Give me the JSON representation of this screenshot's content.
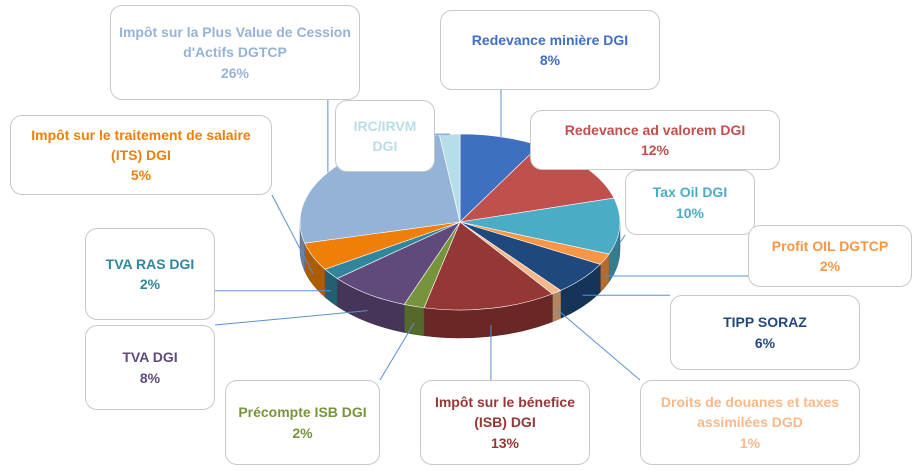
{
  "chart_data": {
    "type": "pie",
    "categories": [
      "Redevance minière DGI",
      "Redevance ad valorem DGI",
      "Tax Oil DGI",
      "Profit OIL DGTCP",
      "TIPP SORAZ",
      "Droits de douanes et taxes assimilées DGD",
      "Impôt  sur le bénefice (ISB) DGI",
      "Précompte ISB DGI",
      "TVA DGI",
      "TVA RAS DGI",
      "Impôt sur le traitement de salaire (ITS) DGI",
      "Impôt sur la Plus Value de Cession d'Actifs DGTCP",
      "IRC/IRVM DGI"
    ],
    "values": [
      8,
      12,
      10,
      2,
      6,
      1,
      13,
      2,
      8,
      2,
      5,
      26,
      2
    ],
    "value_labels": [
      "8%",
      "12%",
      "10%",
      "2%",
      "6%",
      "1%",
      "13%",
      "2%",
      "8%",
      "2%",
      "5%",
      "26%",
      null
    ],
    "colors": [
      "#3f6fbf",
      "#c0504d",
      "#4bacc6",
      "#f79646",
      "#1f497d",
      "#f8b98a",
      "#953735",
      "#77933c",
      "#604a7b",
      "#31859c",
      "#f07f09",
      "#95b3d7",
      "#b7dee8"
    ]
  }
}
